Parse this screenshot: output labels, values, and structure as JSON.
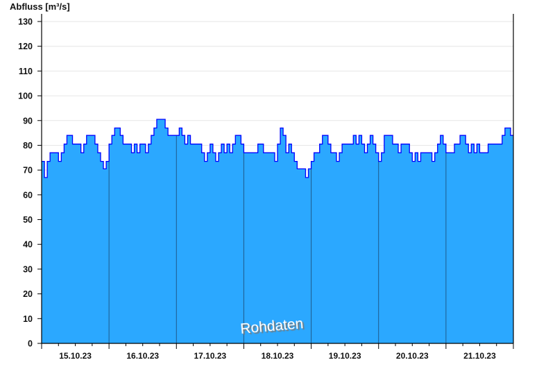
{
  "chart_data": {
    "type": "area",
    "ylabel": "Abfluss [m³/s]",
    "ylim": [
      0,
      130
    ],
    "yticks": [
      0,
      10,
      20,
      30,
      40,
      50,
      60,
      70,
      80,
      90,
      100,
      110,
      120,
      130
    ],
    "xlim": [
      "15.10.23 00:00",
      "22.10.23 00:00"
    ],
    "xtick_labels": [
      "15.10.23",
      "16.10.23",
      "17.10.23",
      "18.10.23",
      "19.10.23",
      "20.10.23",
      "21.10.23"
    ],
    "grid": true,
    "watermark": "Rohdaten",
    "colors": {
      "fill": "#2ba8ff",
      "line": "#0000ff",
      "day_line": "#1e5a8a",
      "grid": "#e6e6e6"
    },
    "steps": [
      [
        "15.10.23 00:00",
        73.5
      ],
      [
        "15.10.23 01:00",
        67
      ],
      [
        "15.10.23 02:00",
        73.5
      ],
      [
        "15.10.23 03:00",
        77
      ],
      [
        "15.10.23 06:00",
        73.5
      ],
      [
        "15.10.23 07:00",
        77
      ],
      [
        "15.10.23 08:00",
        80.5
      ],
      [
        "15.10.23 09:00",
        84
      ],
      [
        "15.10.23 11:00",
        80.5
      ],
      [
        "15.10.23 14:00",
        77
      ],
      [
        "15.10.23 15:00",
        80.5
      ],
      [
        "15.10.23 16:00",
        84
      ],
      [
        "15.10.23 19:00",
        80.5
      ],
      [
        "15.10.23 20:00",
        77
      ],
      [
        "15.10.23 21:00",
        73.5
      ],
      [
        "15.10.23 22:00",
        70.5
      ],
      [
        "15.10.23 23:00",
        73.5
      ],
      [
        "16.10.23 00:00",
        80.5
      ],
      [
        "16.10.23 01:00",
        84
      ],
      [
        "16.10.23 02:00",
        87
      ],
      [
        "16.10.23 04:00",
        84
      ],
      [
        "16.10.23 05:00",
        80.5
      ],
      [
        "16.10.23 08:00",
        77
      ],
      [
        "16.10.23 09:00",
        80.5
      ],
      [
        "16.10.23 10:00",
        77
      ],
      [
        "16.10.23 11:00",
        80.5
      ],
      [
        "16.10.23 13:00",
        77
      ],
      [
        "16.10.23 14:00",
        80.5
      ],
      [
        "16.10.23 15:00",
        84
      ],
      [
        "16.10.23 16:00",
        87
      ],
      [
        "16.10.23 17:00",
        90.5
      ],
      [
        "16.10.23 20:00",
        87
      ],
      [
        "16.10.23 21:00",
        84
      ],
      [
        "17.10.23 01:00",
        87
      ],
      [
        "17.10.23 02:00",
        84
      ],
      [
        "17.10.23 03:00",
        80.5
      ],
      [
        "17.10.23 04:00",
        84
      ],
      [
        "17.10.23 05:00",
        80.5
      ],
      [
        "17.10.23 09:00",
        77
      ],
      [
        "17.10.23 10:00",
        73.5
      ],
      [
        "17.10.23 11:00",
        77
      ],
      [
        "17.10.23 12:00",
        80.5
      ],
      [
        "17.10.23 13:00",
        77
      ],
      [
        "17.10.23 14:00",
        73.5
      ],
      [
        "17.10.23 15:00",
        77
      ],
      [
        "17.10.23 16:00",
        80.5
      ],
      [
        "17.10.23 17:00",
        77
      ],
      [
        "17.10.23 18:00",
        80.5
      ],
      [
        "17.10.23 19:00",
        77
      ],
      [
        "17.10.23 20:00",
        80.5
      ],
      [
        "17.10.23 21:00",
        84
      ],
      [
        "17.10.23 23:00",
        80.5
      ],
      [
        "18.10.23 00:00",
        77
      ],
      [
        "18.10.23 05:00",
        80.5
      ],
      [
        "18.10.23 07:00",
        77
      ],
      [
        "18.10.23 11:00",
        73.5
      ],
      [
        "18.10.23 12:00",
        80.5
      ],
      [
        "18.10.23 13:00",
        87
      ],
      [
        "18.10.23 14:00",
        84
      ],
      [
        "18.10.23 15:00",
        77
      ],
      [
        "18.10.23 16:00",
        80.5
      ],
      [
        "18.10.23 17:00",
        77
      ],
      [
        "18.10.23 18:00",
        73.5
      ],
      [
        "18.10.23 19:00",
        70.5
      ],
      [
        "18.10.23 22:00",
        67
      ],
      [
        "18.10.23 23:00",
        70.5
      ],
      [
        "19.10.23 00:00",
        73.5
      ],
      [
        "19.10.23 01:00",
        77
      ],
      [
        "19.10.23 03:00",
        80.5
      ],
      [
        "19.10.23 04:00",
        84
      ],
      [
        "19.10.23 06:00",
        80.5
      ],
      [
        "19.10.23 07:00",
        77
      ],
      [
        "19.10.23 09:00",
        73.5
      ],
      [
        "19.10.23 10:00",
        77
      ],
      [
        "19.10.23 11:00",
        80.5
      ],
      [
        "19.10.23 15:00",
        84
      ],
      [
        "19.10.23 16:00",
        80.5
      ],
      [
        "19.10.23 17:00",
        84
      ],
      [
        "19.10.23 18:00",
        80.5
      ],
      [
        "19.10.23 19:00",
        77
      ],
      [
        "19.10.23 20:00",
        80.5
      ],
      [
        "19.10.23 21:00",
        84
      ],
      [
        "19.10.23 22:00",
        80.5
      ],
      [
        "19.10.23 23:00",
        77
      ],
      [
        "20.10.23 00:00",
        73.5
      ],
      [
        "20.10.23 01:00",
        77
      ],
      [
        "20.10.23 02:00",
        84
      ],
      [
        "20.10.23 05:00",
        80.5
      ],
      [
        "20.10.23 07:00",
        77
      ],
      [
        "20.10.23 08:00",
        80.5
      ],
      [
        "20.10.23 11:00",
        77
      ],
      [
        "20.10.23 12:00",
        73.5
      ],
      [
        "20.10.23 13:00",
        77
      ],
      [
        "20.10.23 14:00",
        73.5
      ],
      [
        "20.10.23 15:00",
        77
      ],
      [
        "20.10.23 19:00",
        73.5
      ],
      [
        "20.10.23 20:00",
        77
      ],
      [
        "20.10.23 21:00",
        80.5
      ],
      [
        "20.10.23 22:00",
        84
      ],
      [
        "20.10.23 23:00",
        80.5
      ],
      [
        "21.10.23 00:00",
        77
      ],
      [
        "21.10.23 03:00",
        80.5
      ],
      [
        "21.10.23 05:00",
        84
      ],
      [
        "21.10.23 07:00",
        80.5
      ],
      [
        "21.10.23 08:00",
        77
      ],
      [
        "21.10.23 09:00",
        80.5
      ],
      [
        "21.10.23 10:00",
        77
      ],
      [
        "21.10.23 11:00",
        80.5
      ],
      [
        "21.10.23 12:00",
        77
      ],
      [
        "21.10.23 15:00",
        80.5
      ],
      [
        "21.10.23 20:00",
        84
      ],
      [
        "21.10.23 21:00",
        87
      ],
      [
        "21.10.23 23:00",
        84
      ]
    ]
  }
}
